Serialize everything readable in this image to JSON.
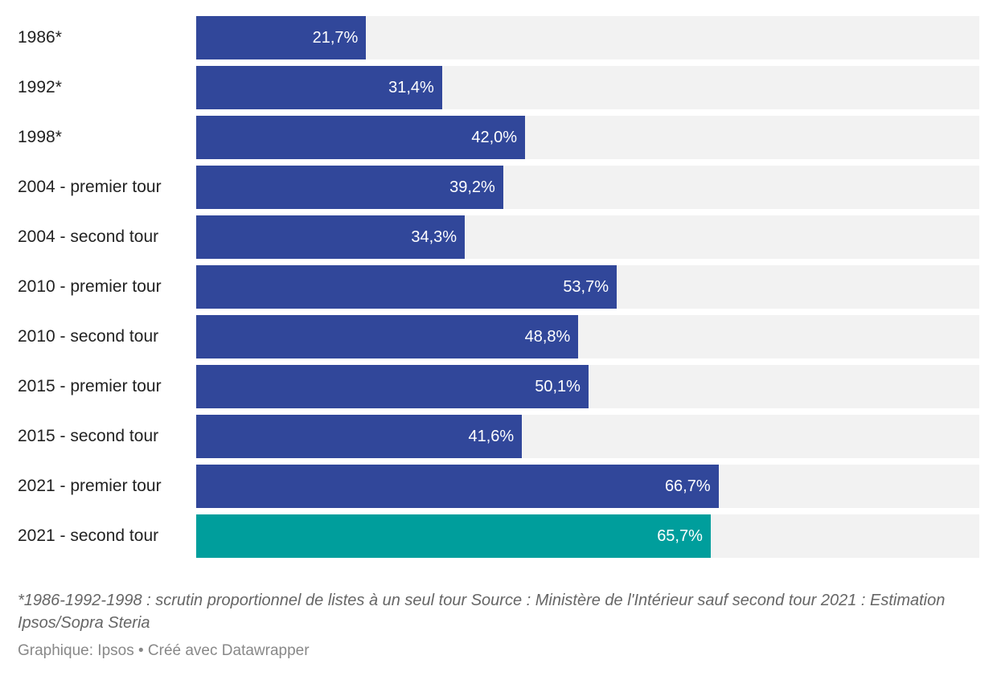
{
  "chart_data": {
    "type": "bar",
    "orientation": "horizontal",
    "categories": [
      "1986*",
      "1992*",
      "1998*",
      "2004 - premier tour",
      "2004 - second tour",
      "2010 - premier tour",
      "2010 - second tour",
      "2015 - premier tour",
      "2015 - second tour",
      "2021 - premier tour",
      "2021 - second tour"
    ],
    "values": [
      21.7,
      31.4,
      42.0,
      39.2,
      34.3,
      53.7,
      48.8,
      50.1,
      41.6,
      66.7,
      65.7
    ],
    "value_labels": [
      "21,7%",
      "31,4%",
      "42,0%",
      "39,2%",
      "34,3%",
      "53,7%",
      "48,8%",
      "50,1%",
      "41,6%",
      "66,7%",
      "65,7%"
    ],
    "xlim": [
      0,
      100
    ],
    "grid": false,
    "colors": {
      "default": "#31479a",
      "highlight": "#009e9c",
      "track": "#f2f2f2"
    },
    "highlight_index": 10
  },
  "notes": "*1986-1992-1998 : scrutin proportionnel de listes à un seul tour Source : Ministère de l'Intérieur sauf second tour 2021 : Estimation Ipsos/Sopra Steria",
  "credit": "Graphique: Ipsos • Créé avec Datawrapper"
}
